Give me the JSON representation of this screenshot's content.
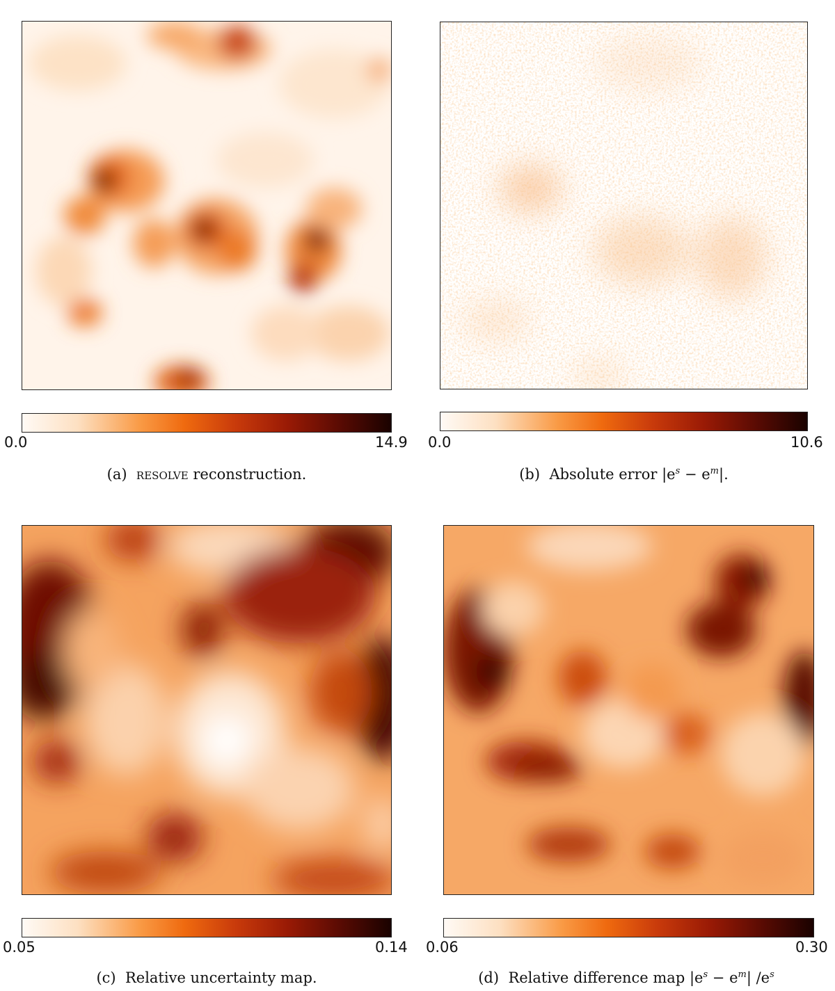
{
  "panels": [
    {
      "id": "a",
      "cbar_min": "0.0",
      "cbar_max": "14.9",
      "caption_label": "(a)",
      "caption_sc": "resolve",
      "caption_text": " reconstruction."
    },
    {
      "id": "b",
      "cbar_min": "0.0",
      "cbar_max": "10.6",
      "caption_label": "(b)",
      "caption_text": "Absolute error |e",
      "caption_sup1": "s",
      "caption_mid": " − e",
      "caption_sup2": "m",
      "caption_end": "|."
    },
    {
      "id": "c",
      "cbar_min": "0.05",
      "cbar_max": "0.14",
      "caption_label": "(c)",
      "caption_text": "Relative uncertainty map."
    },
    {
      "id": "d",
      "cbar_min": "0.06",
      "cbar_max": "0.30",
      "caption_label": "(d)",
      "caption_text": "Relative difference map |e",
      "caption_sup1": "s",
      "caption_mid": " − e",
      "caption_sup2": "m",
      "caption_end": "| /e",
      "caption_sup3": "s"
    }
  ],
  "colors": {
    "light": "#fffaf5",
    "mid": "#ef6a0f",
    "dark": "#1a0200"
  }
}
